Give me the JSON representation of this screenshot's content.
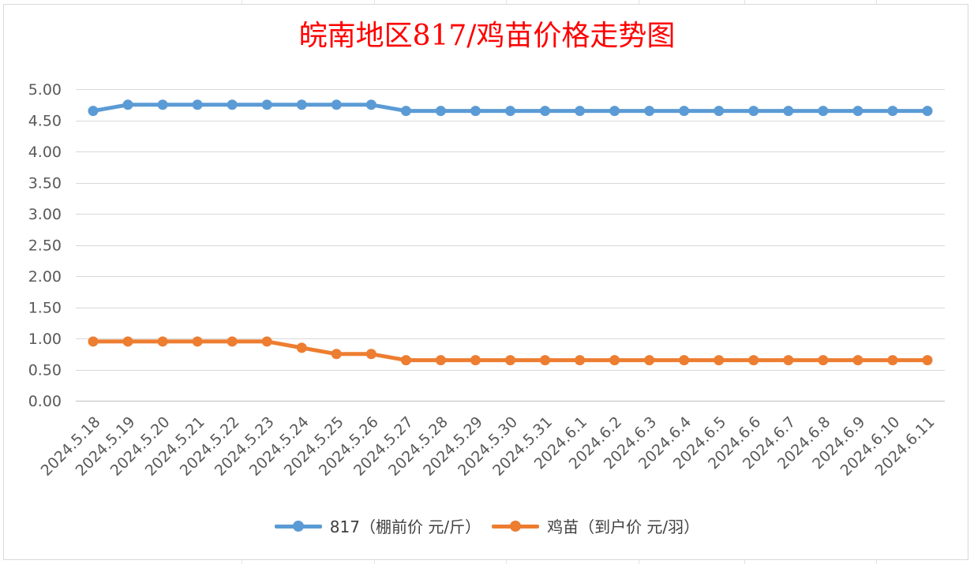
{
  "chart_data": {
    "type": "line",
    "title": "皖南地区817/鸡苗价格走势图",
    "colors": {
      "title": "#ff0000",
      "series_817": "#5b9bd5",
      "series_chick": "#ed7d31"
    },
    "x": [
      "2024.5.18",
      "2024.5.19",
      "2024.5.20",
      "2024.5.21",
      "2024.5.22",
      "2024.5.23",
      "2024.5.24",
      "2024.5.25",
      "2024.5.26",
      "2024.5.27",
      "2024.5.28",
      "2024.5.29",
      "2024.5.30",
      "2024.5.31",
      "2024.6.1",
      "2024.6.2",
      "2024.6.3",
      "2024.6.4",
      "2024.6.5",
      "2024.6.6",
      "2024.6.7",
      "2024.6.8",
      "2024.6.9",
      "2024.6.10",
      "2024.6.11"
    ],
    "y_ticks": [
      "0.00",
      "0.50",
      "1.00",
      "1.50",
      "2.00",
      "2.50",
      "3.00",
      "3.50",
      "4.00",
      "4.50",
      "5.00"
    ],
    "ylim": [
      0,
      5
    ],
    "grid": true,
    "legend_position": "bottom",
    "series": [
      {
        "name": "817（棚前价 元/斤）",
        "color": "#5b9bd5",
        "values": [
          4.65,
          4.75,
          4.75,
          4.75,
          4.75,
          4.75,
          4.75,
          4.75,
          4.75,
          4.65,
          4.65,
          4.65,
          4.65,
          4.65,
          4.65,
          4.65,
          4.65,
          4.65,
          4.65,
          4.65,
          4.65,
          4.65,
          4.65,
          4.65,
          4.65
        ]
      },
      {
        "name": "鸡苗（到户价 元/羽）",
        "color": "#ed7d31",
        "values": [
          0.95,
          0.95,
          0.95,
          0.95,
          0.95,
          0.95,
          0.85,
          0.75,
          0.75,
          0.65,
          0.65,
          0.65,
          0.65,
          0.65,
          0.65,
          0.65,
          0.65,
          0.65,
          0.65,
          0.65,
          0.65,
          0.65,
          0.65,
          0.65,
          0.65
        ]
      }
    ]
  }
}
